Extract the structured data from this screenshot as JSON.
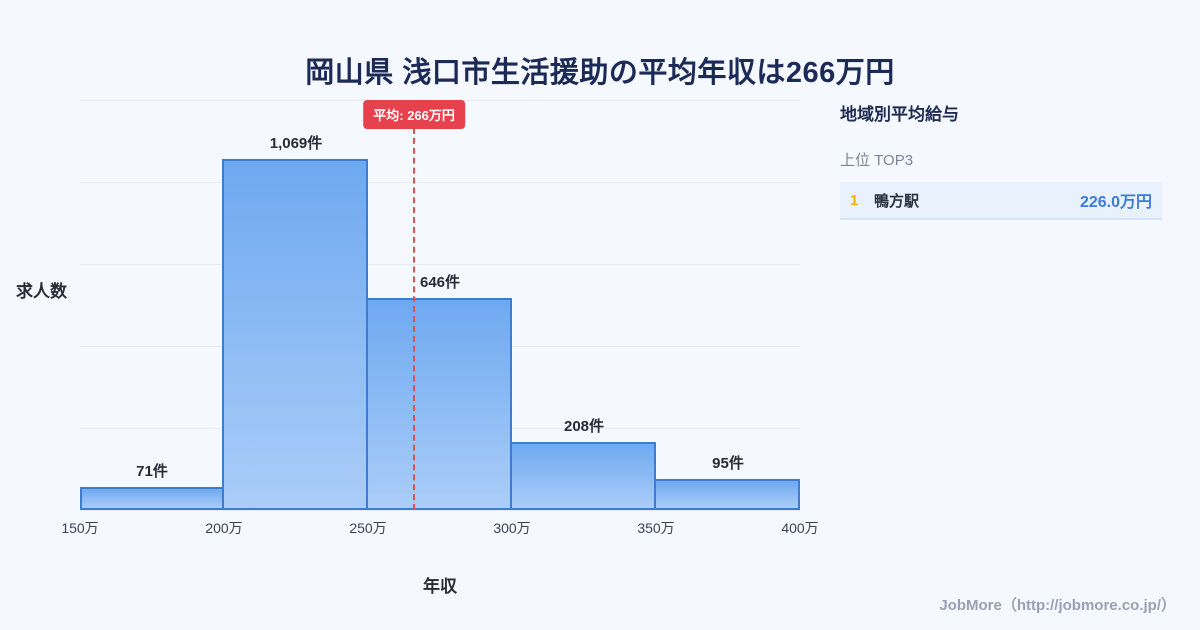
{
  "page": {
    "title": "岡山県 浅口市生活援助の平均年収は266万円",
    "footer": "JobMore（http://jobmore.co.jp/）"
  },
  "chart_data": {
    "type": "bar",
    "subtype": "histogram",
    "title": "岡山県 浅口市生活援助の平均年収は266万円",
    "xlabel": "年収",
    "ylabel": "求人数",
    "bin_edge_labels": [
      "150万",
      "200万",
      "250万",
      "300万",
      "350万",
      "400万"
    ],
    "values": [
      71,
      1069,
      646,
      208,
      95
    ],
    "value_labels": [
      "71件",
      "1,069件",
      "646件",
      "208件",
      "95件"
    ],
    "ylim": [
      0,
      1250
    ],
    "grid_step": 250,
    "grid": "horizontal",
    "average": {
      "x_value": 266,
      "x_range": [
        150,
        400
      ],
      "label": "平均: 266万円"
    },
    "colors": {
      "bar_top": "#6ea9f0",
      "bar_bottom": "#abcdf9",
      "bar_border": "#3d7cd0",
      "average_line": "#e05252",
      "average_badge_bg": "#e8414e",
      "background": "#f5f8fe",
      "title_text": "#1c2a57",
      "value_text": "#3a7cd8",
      "rank_number": "#f3ae00"
    }
  },
  "side_panel": {
    "heading": "地域別平均給与",
    "subheading": "上位 TOP3",
    "ranking": [
      {
        "rank": "1",
        "name": "鴨方駅",
        "value": "226.0万円"
      }
    ]
  }
}
